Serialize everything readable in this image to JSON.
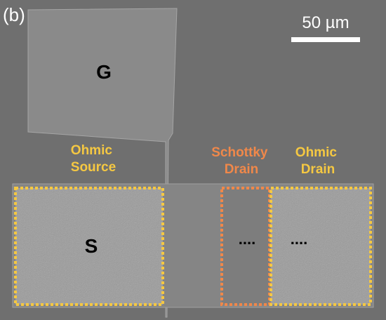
{
  "panel_label": "(b)",
  "scale_bar": "50 µm",
  "gate_label": "G",
  "source_label": "S",
  "regions": [
    {
      "lines": [
        "Ohmic",
        "Source"
      ]
    },
    {
      "lines": [
        "Schottky",
        "Drain"
      ]
    },
    {
      "lines": [
        "Ohmic",
        "Drain"
      ]
    }
  ],
  "ellipses": [
    "....",
    "...."
  ]
}
